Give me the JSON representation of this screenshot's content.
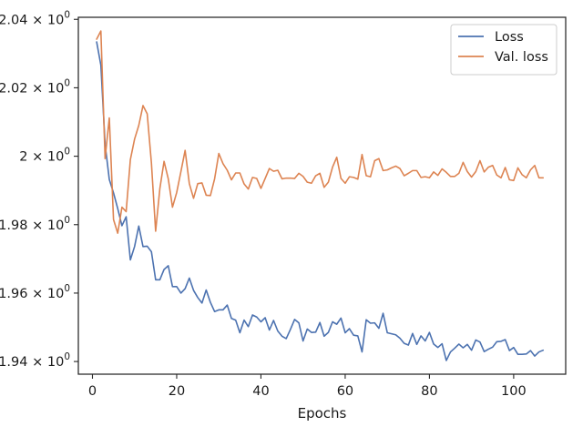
{
  "chart_data": {
    "type": "line",
    "title": "",
    "xlabel": "Epochs",
    "ylabel": "",
    "xlim": [
      -3.35,
      112.35
    ],
    "ylim": [
      1.9363,
      2.0406
    ],
    "grid": false,
    "legend_position": "top-right",
    "x_ticks": [
      0,
      20,
      40,
      60,
      80,
      100
    ],
    "x_tick_labels": [
      "0",
      "20",
      "40",
      "60",
      "80",
      "100"
    ],
    "y_ticks": [
      1.94,
      1.96,
      1.98,
      2.0,
      2.02,
      2.04
    ],
    "y_tick_labels": [
      {
        "mantissa": "1.94",
        "times": "×",
        "base": "10",
        "exp": "0"
      },
      {
        "mantissa": "1.96",
        "times": "×",
        "base": "10",
        "exp": "0"
      },
      {
        "mantissa": "1.98",
        "times": "×",
        "base": "10",
        "exp": "0"
      },
      {
        "mantissa": "2",
        "times": "×",
        "base": "10",
        "exp": "0"
      },
      {
        "mantissa": "2.02",
        "times": "×",
        "base": "10",
        "exp": "0"
      },
      {
        "mantissa": "2.04",
        "times": "×",
        "base": "10",
        "exp": "0"
      }
    ],
    "series": [
      {
        "name": "Loss",
        "color": "#4c72b0",
        "x": [
          1,
          2,
          3,
          4,
          5,
          6,
          7,
          8,
          9,
          10,
          11,
          12,
          13,
          14,
          15,
          16,
          17,
          18,
          19,
          20,
          21,
          22,
          23,
          24,
          25,
          26,
          27,
          28,
          29,
          30,
          31,
          32,
          33,
          34,
          35,
          36,
          37,
          38,
          39,
          40,
          41,
          42,
          43,
          44,
          45,
          46,
          47,
          48,
          49,
          50,
          51,
          52,
          53,
          54,
          55,
          56,
          57,
          58,
          59,
          60,
          61,
          62,
          63,
          64,
          65,
          66,
          67,
          68,
          69,
          70,
          71,
          72,
          73,
          74,
          75,
          76,
          77,
          78,
          79,
          80,
          81,
          82,
          83,
          84,
          85,
          86,
          87,
          88,
          89,
          90,
          91,
          92,
          93,
          94,
          95,
          96,
          97,
          98,
          99,
          100,
          101,
          102,
          103,
          104,
          105,
          106,
          107
        ],
        "y": [
          2.0334,
          2.0266,
          2.0035,
          1.9932,
          1.9893,
          1.9847,
          1.9797,
          1.9823,
          1.9697,
          1.9736,
          1.9796,
          1.9736,
          1.9737,
          1.9721,
          1.9639,
          1.9639,
          1.9669,
          1.968,
          1.9619,
          1.9619,
          1.96,
          1.9613,
          1.9644,
          1.9608,
          1.9587,
          1.9571,
          1.9609,
          1.9573,
          1.9546,
          1.9551,
          1.9551,
          1.9565,
          1.9526,
          1.9521,
          1.9484,
          1.9521,
          1.9502,
          1.9536,
          1.953,
          1.9516,
          1.9528,
          1.9492,
          1.952,
          1.9489,
          1.9474,
          1.9467,
          1.9494,
          1.9523,
          1.9513,
          1.946,
          1.9495,
          1.9485,
          1.9486,
          1.9514,
          1.9474,
          1.9485,
          1.9516,
          1.9509,
          1.9527,
          1.9484,
          1.9496,
          1.9477,
          1.9475,
          1.9428,
          1.9522,
          1.9512,
          1.9513,
          1.9497,
          1.9541,
          1.9484,
          1.9481,
          1.9478,
          1.9468,
          1.9453,
          1.9448,
          1.9482,
          1.945,
          1.9475,
          1.946,
          1.9485,
          1.9451,
          1.9441,
          1.9452,
          1.9403,
          1.9428,
          1.9439,
          1.9451,
          1.944,
          1.945,
          1.9433,
          1.9463,
          1.9457,
          1.9429,
          1.9436,
          1.9442,
          1.9458,
          1.9459,
          1.9464,
          1.9432,
          1.9441,
          1.9421,
          1.9421,
          1.9422,
          1.9432,
          1.9416,
          1.9428,
          1.9433
        ]
      },
      {
        "name": "Val. loss",
        "color": "#dd8452",
        "x": [
          1,
          2,
          3,
          4,
          5,
          6,
          7,
          8,
          9,
          10,
          11,
          12,
          13,
          14,
          15,
          16,
          17,
          18,
          19,
          20,
          21,
          22,
          23,
          24,
          25,
          26,
          27,
          28,
          29,
          30,
          31,
          32,
          33,
          34,
          35,
          36,
          37,
          38,
          39,
          40,
          41,
          42,
          43,
          44,
          45,
          46,
          47,
          48,
          49,
          50,
          51,
          52,
          53,
          54,
          55,
          56,
          57,
          58,
          59,
          60,
          61,
          62,
          63,
          64,
          65,
          66,
          67,
          68,
          69,
          70,
          71,
          72,
          73,
          74,
          75,
          76,
          77,
          78,
          79,
          80,
          81,
          82,
          83,
          84,
          85,
          86,
          87,
          88,
          89,
          90,
          91,
          92,
          93,
          94,
          95,
          96,
          97,
          98,
          99,
          100,
          101,
          102,
          103,
          104,
          105,
          106,
          107
        ],
        "y": [
          2.0342,
          2.0366,
          1.9993,
          2.0112,
          1.9815,
          1.9775,
          1.9851,
          1.9838,
          1.999,
          2.005,
          2.009,
          2.0148,
          2.0124,
          1.998,
          1.9781,
          1.9905,
          1.9985,
          1.9934,
          1.9851,
          1.9894,
          1.9955,
          2.0017,
          1.992,
          1.9877,
          1.992,
          1.9922,
          1.9886,
          1.9885,
          1.9934,
          2.0008,
          1.9978,
          1.9959,
          1.9931,
          1.9951,
          1.9951,
          1.9919,
          1.9904,
          1.9938,
          1.9935,
          1.9906,
          1.9935,
          1.9964,
          1.9956,
          1.9959,
          1.9934,
          1.9936,
          1.9936,
          1.9935,
          1.995,
          1.9941,
          1.9924,
          1.9921,
          1.9943,
          1.995,
          1.9909,
          1.9924,
          1.9968,
          1.9997,
          1.9935,
          1.9921,
          1.994,
          1.9938,
          1.9933,
          2.0005,
          1.9943,
          1.994,
          1.9987,
          1.9993,
          1.9958,
          1.996,
          1.9966,
          1.9971,
          1.9964,
          1.9943,
          1.995,
          1.9958,
          1.9958,
          1.9938,
          1.994,
          1.9937,
          1.9954,
          1.9944,
          1.9963,
          1.9953,
          1.9941,
          1.9941,
          1.995,
          1.9982,
          1.9955,
          1.9939,
          1.9955,
          1.9987,
          1.9954,
          1.9968,
          1.9973,
          1.9945,
          1.9937,
          1.9967,
          1.9931,
          1.9929,
          1.9966,
          1.9946,
          1.9937,
          1.996,
          1.9973,
          1.9937,
          1.9937
        ]
      }
    ]
  }
}
